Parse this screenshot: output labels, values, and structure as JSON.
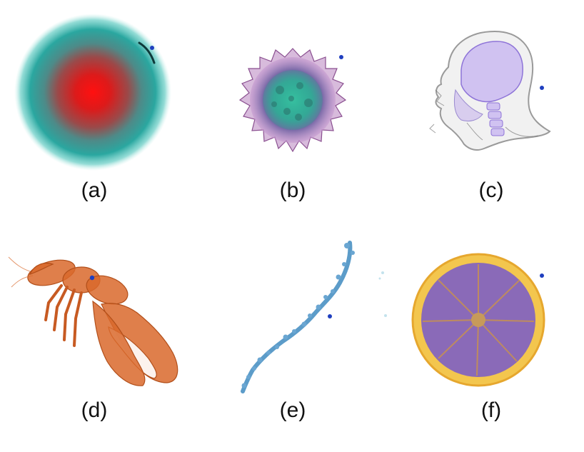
{
  "figure": {
    "panels": [
      {
        "id": "a",
        "label": "(a)"
      },
      {
        "id": "b",
        "label": "(b)"
      },
      {
        "id": "c",
        "label": "(c)"
      },
      {
        "id": "d",
        "label": "(d)"
      },
      {
        "id": "e",
        "label": "(e)"
      },
      {
        "id": "f",
        "label": "(f)"
      }
    ],
    "colors": {
      "marker": "#1f3fbf",
      "sphere_core": "#e01010",
      "sphere_shell": "#2aa7a0",
      "virus_outer": "#a45aa8",
      "virus_inner": "#2eb59a",
      "head_shell": "#bdbdbd",
      "head_skull": "#a98ae8",
      "lobster": "#d9692c",
      "neuron": "#5c9cc9",
      "orange_rind": "#efc04a",
      "orange_pulp": "#8a6ab8"
    }
  }
}
